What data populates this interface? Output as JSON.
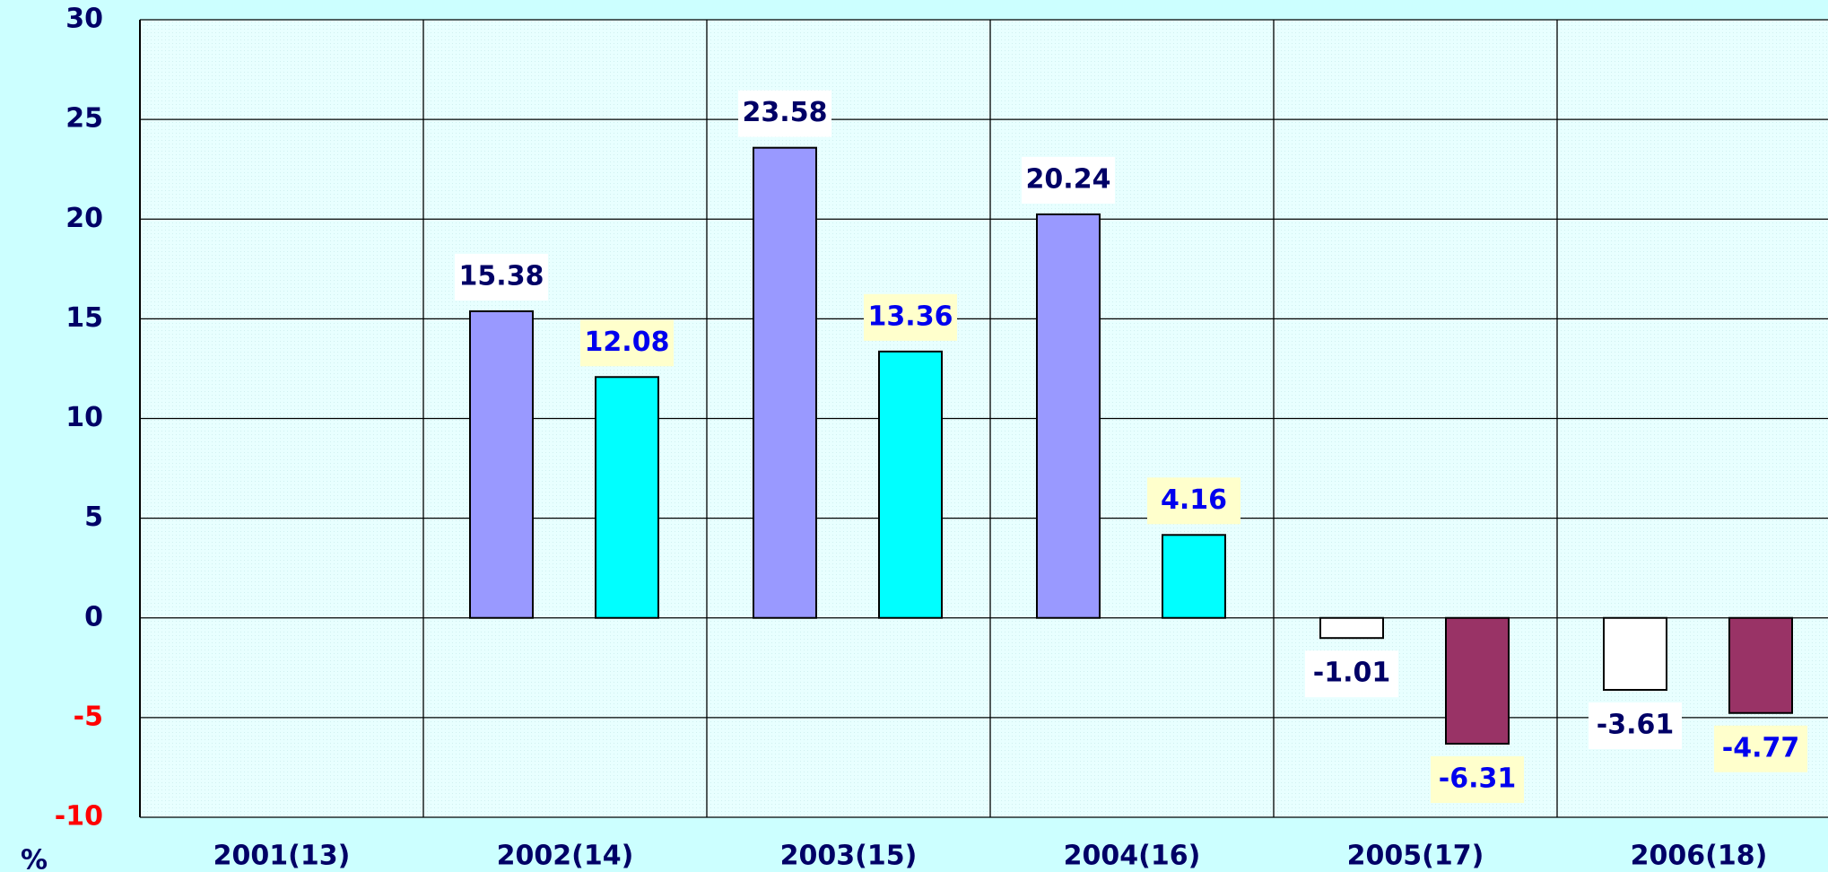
{
  "chart_data": {
    "type": "bar",
    "y_unit_label": "%",
    "categories": [
      "2001(13)",
      "2002(14)",
      "2003(15)",
      "2004(16)",
      "2005(17)",
      "2006(18)"
    ],
    "series": [
      {
        "values": [
          null,
          15.38,
          23.58,
          20.24,
          -1.01,
          -3.61
        ],
        "color": "#9999ff",
        "negative_color": "#ffffff",
        "label_color": "#000066",
        "label_background": "#ffffff"
      },
      {
        "values": [
          null,
          12.08,
          13.36,
          4.16,
          -6.31,
          -4.77
        ],
        "color": "#00ffff",
        "negative_color": "#993366",
        "label_color": "#0000ee",
        "label_background": "#ffffcc"
      }
    ],
    "ylim": [
      -10,
      30
    ],
    "yticks": [
      -10,
      -5,
      0,
      5,
      10,
      15,
      20,
      25,
      30
    ],
    "tick_color": "#000066",
    "negative_tick_color": "#ff0000",
    "grid": true
  }
}
